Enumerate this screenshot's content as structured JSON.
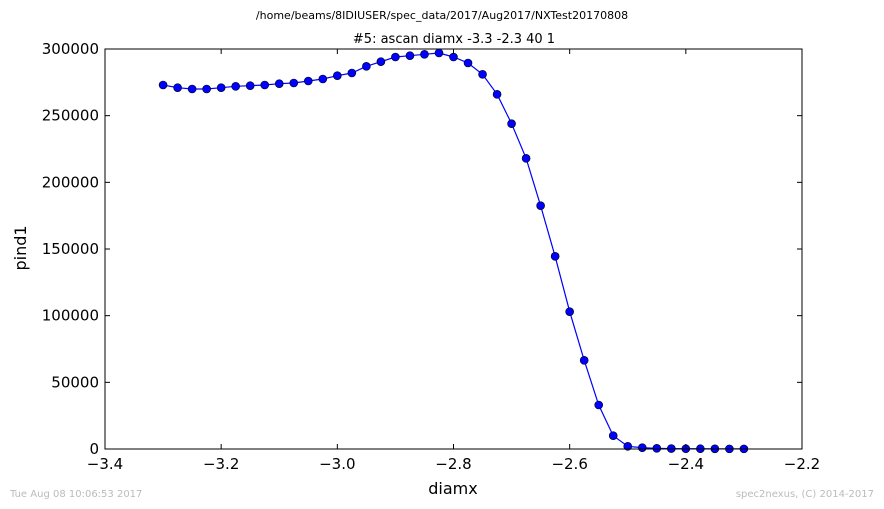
{
  "figure": {
    "suptitle": "/home/beams/8IDIUSER/spec_data/2017/Aug2017/NXTest20170808",
    "footer_left": "Tue Aug 08 10:06:53 2017",
    "footer_right": "spec2nexus, (C) 2014-2017"
  },
  "chart_data": {
    "type": "line",
    "title": "#5: ascan  diamx -3.3 -2.3  40 1",
    "xlabel": "diamx",
    "ylabel": "pind1",
    "xlim": [
      -3.4,
      -2.2
    ],
    "ylim": [
      0,
      300000
    ],
    "xticks": [
      -3.4,
      -3.2,
      -3.0,
      -2.8,
      -2.6,
      -2.4,
      -2.2
    ],
    "xtick_labels": [
      "−3.4",
      "−3.2",
      "−3.0",
      "−2.8",
      "−2.6",
      "−2.4",
      "−2.2"
    ],
    "yticks": [
      0,
      50000,
      100000,
      150000,
      200000,
      250000,
      300000
    ],
    "ytick_labels": [
      "0",
      "50000",
      "100000",
      "150000",
      "200000",
      "250000",
      "300000"
    ],
    "grid": false,
    "color": "#0000ff",
    "series": [
      {
        "x": [
          -3.3,
          -3.275,
          -3.25,
          -3.225,
          -3.2,
          -3.175,
          -3.15,
          -3.125,
          -3.1,
          -3.075,
          -3.05,
          -3.025,
          -3.0,
          -2.975,
          -2.95,
          -2.925,
          -2.9,
          -2.875,
          -2.85,
          -2.825,
          -2.8,
          -2.775,
          -2.75,
          -2.725,
          -2.7,
          -2.675,
          -2.65,
          -2.625,
          -2.6,
          -2.575,
          -2.55,
          -2.525,
          -2.5,
          -2.475,
          -2.45,
          -2.425,
          -2.4,
          -2.375,
          -2.35,
          -2.325,
          -2.3
        ],
        "values": [
          273000,
          271000,
          270000,
          270000,
          271000,
          272000,
          272500,
          273000,
          274000,
          274500,
          276000,
          277500,
          280000,
          282000,
          287000,
          290500,
          294000,
          295000,
          296000,
          297000,
          294000,
          289500,
          281000,
          266000,
          244000,
          218000,
          182500,
          144500,
          103000,
          66500,
          33000,
          10000,
          2000,
          1000,
          500,
          300,
          200,
          200,
          150,
          100,
          100
        ]
      }
    ]
  }
}
